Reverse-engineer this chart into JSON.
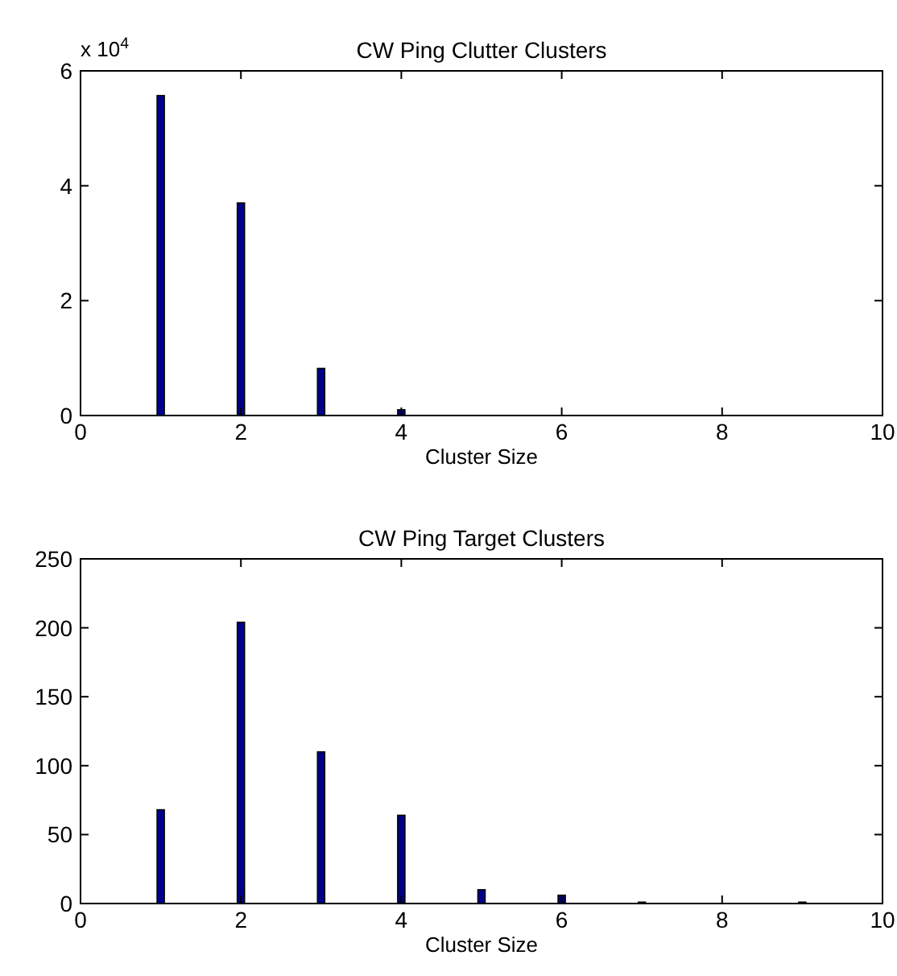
{
  "chart_data": [
    {
      "type": "bar",
      "title": "CW Ping Clutter Clusters",
      "xlabel": "Cluster Size",
      "annotations": [
        "x 10$^{4}$"
      ],
      "x": [
        1,
        2,
        3,
        4
      ],
      "values": [
        5.57,
        3.7,
        0.82,
        0.1
      ],
      "color": "#00008b",
      "xlim": [
        0,
        10
      ],
      "xticks": [
        0,
        2,
        4,
        6,
        8,
        10
      ],
      "ylim": [
        0,
        6
      ],
      "yticks": [
        0,
        2,
        4,
        6
      ],
      "grid": false
    },
    {
      "type": "bar",
      "title": "CW Ping Target Clusters",
      "xlabel": "Cluster Size",
      "x": [
        1,
        2,
        3,
        4,
        5,
        6,
        7,
        9
      ],
      "values": [
        68,
        204,
        110,
        64,
        10,
        6,
        1,
        1
      ],
      "color": "#00008b",
      "xlim": [
        0,
        10
      ],
      "xticks": [
        0,
        2,
        4,
        6,
        8,
        10
      ],
      "ylim": [
        0,
        250
      ],
      "yticks": [
        0,
        50,
        100,
        150,
        200,
        250
      ],
      "grid": false
    }
  ]
}
